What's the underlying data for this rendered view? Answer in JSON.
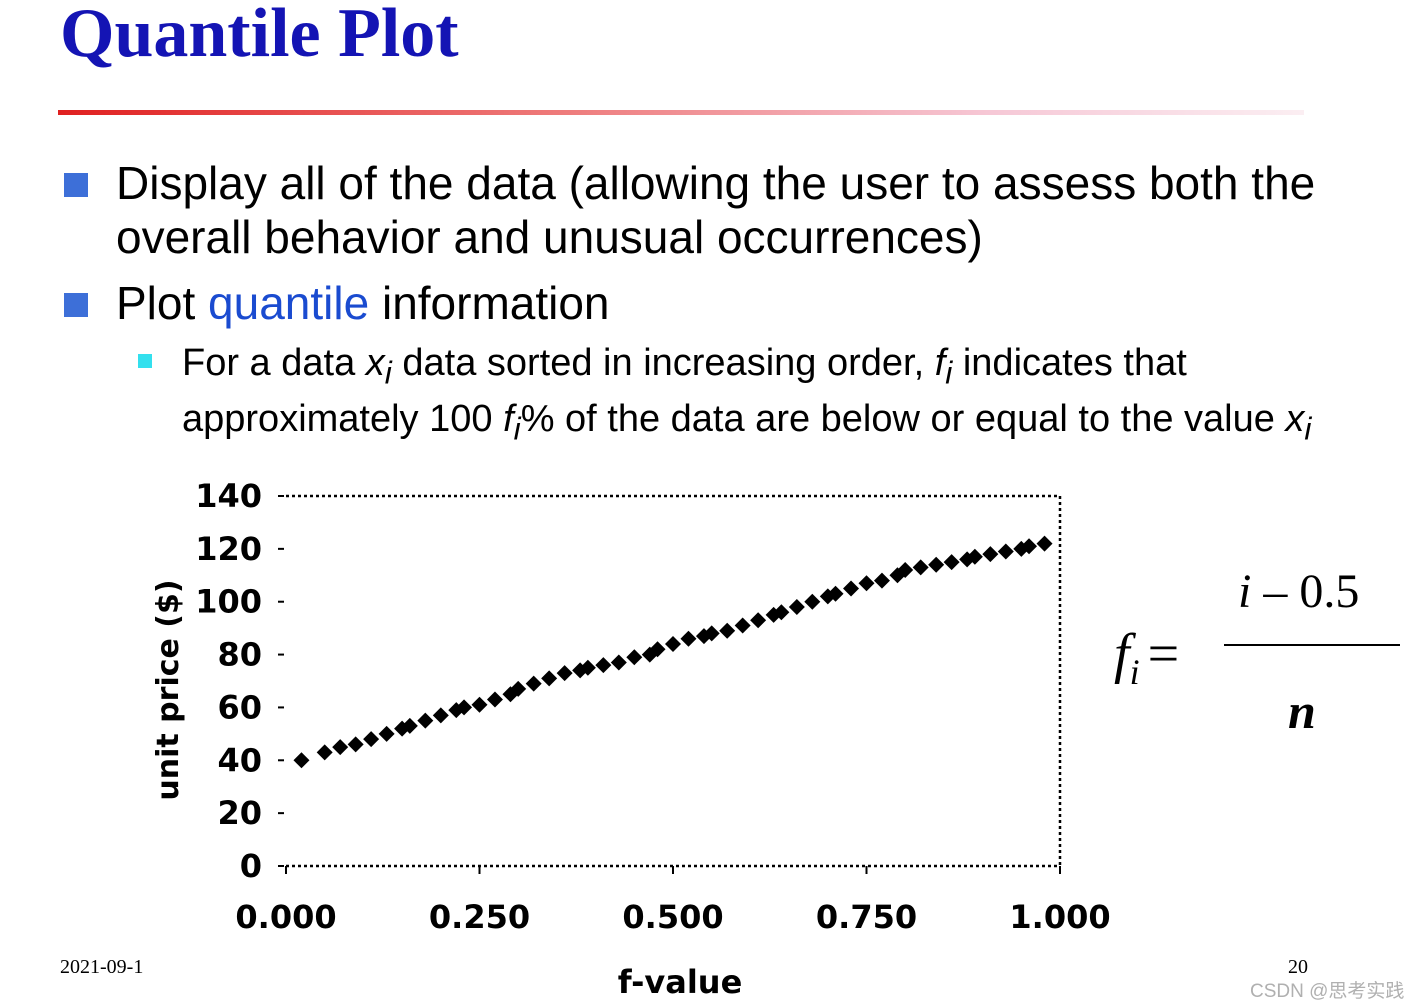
{
  "slide": {
    "title": "Quantile Plot",
    "bullets": [
      {
        "text": "Display all of the data (allowing the user to assess both the overall behavior and unusual occurrences)"
      },
      {
        "before": "Plot ",
        "highlight": "quantile",
        "after": " information"
      }
    ],
    "sub_bullet": {
      "p1": "For a data ",
      "var1": "x",
      "sub1": "i",
      "p2": " data sorted in increasing order, ",
      "var2": "f",
      "sub2": "i",
      "p3": " indicates that approximately 100 ",
      "var3": "f",
      "sub3": "i",
      "p4": "% of the data are below or equal to the value ",
      "var4": "x",
      "sub4": "i"
    },
    "formula": {
      "lhs_var": "f",
      "lhs_sub": "i",
      "equals": "=",
      "num_var": "i",
      "num_rest": " – 0.5",
      "den": "n"
    },
    "footer_date": "2021-09-1",
    "page_number": "20",
    "watermark": "CSDN @思考实践"
  },
  "colors": {
    "title": "#1414b4",
    "bullet_square": "#3d6fd8",
    "sub_bullet_square": "#33e0ee",
    "highlight": "#1a4bd0"
  },
  "chart_data": {
    "type": "scatter",
    "title": "",
    "xlabel": "f-value",
    "ylabel": "unit price ($)",
    "xlim": [
      0,
      1
    ],
    "ylim": [
      0,
      140
    ],
    "x_ticks": [
      0,
      0.25,
      0.5,
      0.75,
      1.0
    ],
    "x_tick_labels": [
      "0.000",
      "0.250",
      "0.500",
      "0.750",
      "1.000"
    ],
    "y_ticks": [
      0,
      20,
      40,
      60,
      80,
      100,
      120,
      140
    ],
    "y_tick_labels": [
      "0",
      "20",
      "40",
      "60",
      "80",
      "100",
      "120",
      "140"
    ],
    "grid": false,
    "series": [
      {
        "x": [
          0.02,
          0.05,
          0.07,
          0.09,
          0.11,
          0.13,
          0.15,
          0.16,
          0.18,
          0.2,
          0.22,
          0.23,
          0.25,
          0.27,
          0.29,
          0.3,
          0.32,
          0.34,
          0.36,
          0.38,
          0.39,
          0.41,
          0.43,
          0.45,
          0.47,
          0.48,
          0.5,
          0.52,
          0.54,
          0.55,
          0.57,
          0.59,
          0.61,
          0.63,
          0.64,
          0.66,
          0.68,
          0.7,
          0.71,
          0.73,
          0.75,
          0.77,
          0.79,
          0.8,
          0.82,
          0.84,
          0.86,
          0.88,
          0.89,
          0.91,
          0.93,
          0.95,
          0.96,
          0.98
        ],
        "y": [
          40,
          43,
          45,
          46,
          48,
          50,
          52,
          53,
          55,
          57,
          59,
          60,
          61,
          63,
          65,
          67,
          69,
          71,
          73,
          74,
          75,
          76,
          77,
          79,
          80,
          82,
          84,
          86,
          87,
          88,
          89,
          91,
          93,
          95,
          96,
          98,
          100,
          102,
          103,
          105,
          107,
          108,
          110,
          112,
          113,
          114,
          115,
          116,
          117,
          118,
          119,
          120,
          121,
          122
        ]
      }
    ]
  }
}
